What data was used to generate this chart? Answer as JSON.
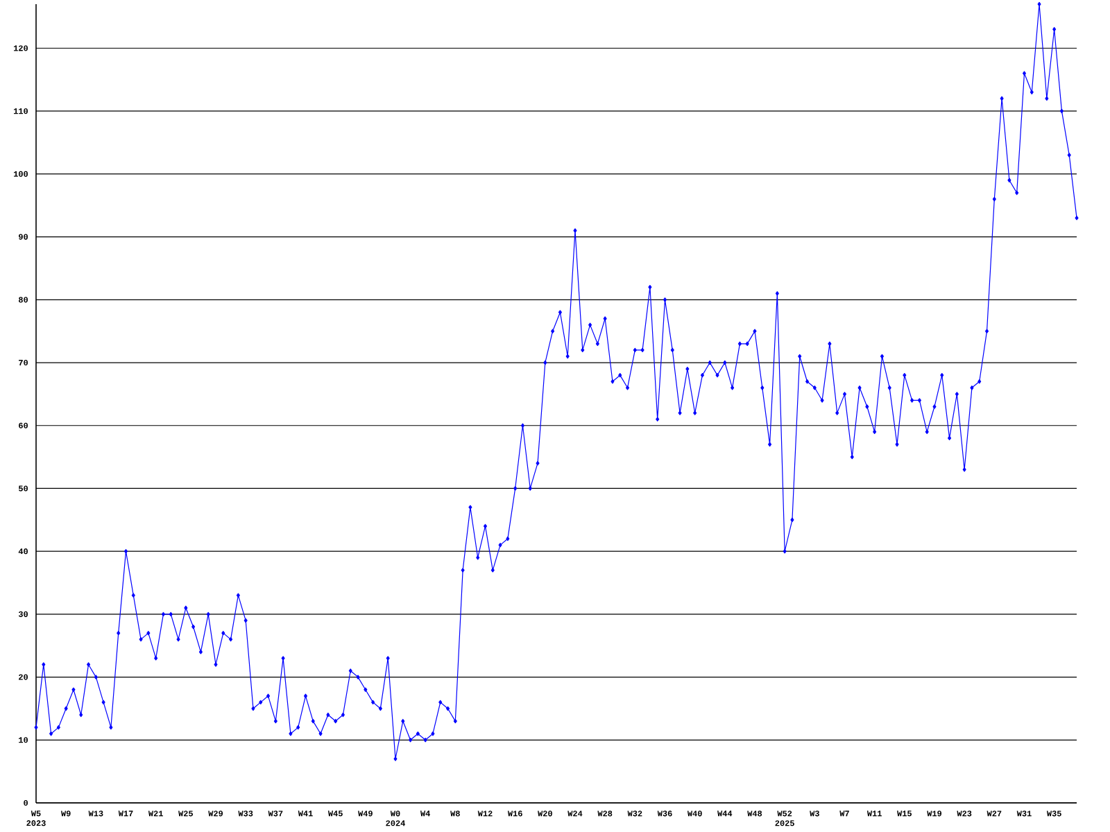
{
  "chart_data": {
    "type": "line",
    "categories": [
      "W5 2023",
      null,
      null,
      null,
      "W9",
      null,
      null,
      null,
      "W13",
      null,
      null,
      null,
      "W17",
      null,
      null,
      null,
      "W21",
      null,
      null,
      null,
      "W25",
      null,
      null,
      null,
      "W29",
      null,
      null,
      null,
      "W33",
      null,
      null,
      null,
      "W37",
      null,
      null,
      null,
      "W41",
      null,
      null,
      null,
      "W45",
      null,
      null,
      null,
      "W49",
      null,
      null,
      null,
      "W0 2024",
      null,
      null,
      null,
      "W4",
      null,
      null,
      null,
      "W8",
      null,
      null,
      null,
      "W12",
      null,
      null,
      null,
      "W16",
      null,
      null,
      null,
      "W20",
      null,
      null,
      null,
      "W24",
      null,
      null,
      null,
      "W28",
      null,
      null,
      null,
      "W32",
      null,
      null,
      null,
      "W36",
      null,
      null,
      null,
      "W40",
      null,
      null,
      null,
      "W44",
      null,
      null,
      null,
      "W48",
      null,
      null,
      null,
      "W52 2025",
      null,
      null,
      null,
      "W3",
      null,
      null,
      null,
      "W7",
      null,
      null,
      null,
      "W11",
      null,
      null,
      null,
      "W15",
      null,
      null,
      null,
      "W19",
      null,
      null,
      null,
      "W23",
      null,
      null,
      null,
      "W27",
      null,
      null,
      null,
      "W31",
      null,
      null,
      null,
      "W35",
      null,
      null,
      null
    ],
    "values": [
      12,
      22,
      11,
      12,
      15,
      18,
      14,
      22,
      20,
      16,
      12,
      27,
      40,
      33,
      26,
      27,
      23,
      30,
      30,
      26,
      31,
      28,
      24,
      30,
      22,
      27,
      26,
      33,
      29,
      15,
      16,
      17,
      13,
      23,
      11,
      12,
      17,
      13,
      11,
      14,
      13,
      14,
      21,
      20,
      18,
      16,
      15,
      23,
      7,
      13,
      10,
      11,
      10,
      11,
      16,
      15,
      13,
      37,
      47,
      39,
      44,
      37,
      41,
      42,
      50,
      60,
      50,
      54,
      70,
      75,
      78,
      71,
      91,
      72,
      76,
      73,
      77,
      67,
      68,
      66,
      72,
      72,
      82,
      61,
      80,
      72,
      62,
      69,
      62,
      68,
      70,
      68,
      70,
      66,
      73,
      73,
      75,
      66,
      57,
      81,
      40,
      45,
      71,
      67,
      66,
      64,
      73,
      62,
      65,
      55,
      66,
      63,
      59,
      71,
      66,
      57,
      68,
      64,
      64,
      59,
      63,
      68,
      58,
      65,
      53,
      66,
      67,
      75,
      96,
      112,
      99,
      97,
      116,
      113,
      127,
      112,
      123,
      110,
      103,
      93
    ],
    "color": "#0000ff",
    "ylim": [
      0,
      127
    ],
    "yticks": [
      0,
      10,
      20,
      30,
      40,
      50,
      60,
      70,
      80,
      90,
      100,
      110,
      120
    ],
    "grid": "y",
    "marker": "diamond"
  }
}
